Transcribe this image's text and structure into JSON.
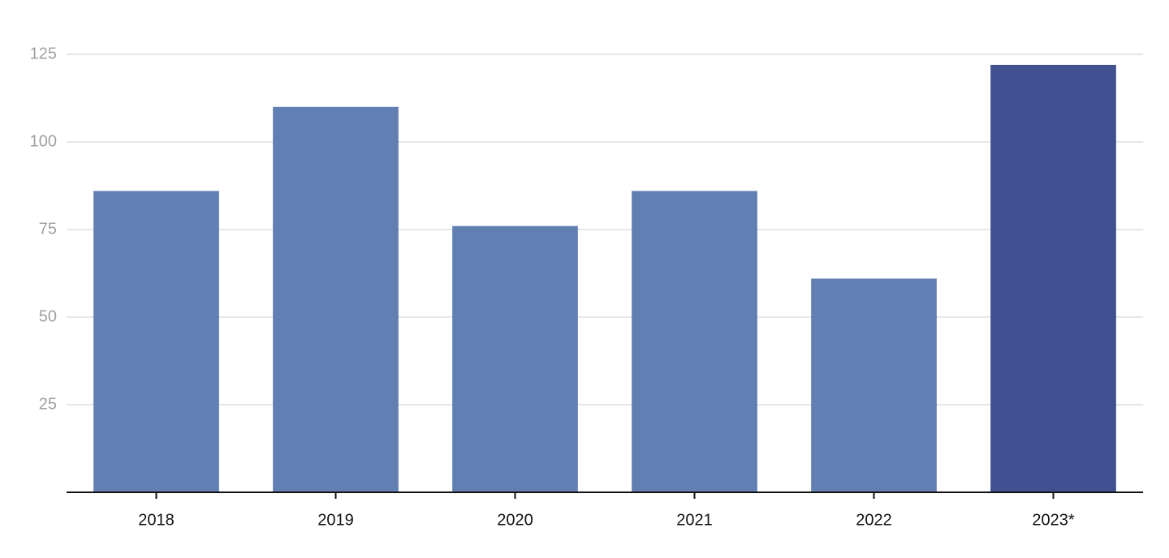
{
  "chart_data": {
    "type": "bar",
    "categories": [
      "2018",
      "2019",
      "2020",
      "2021",
      "2022",
      "2023*"
    ],
    "values": [
      86,
      110,
      76,
      86,
      61,
      122
    ],
    "colors": [
      "#627fb4",
      "#627fb4",
      "#627fb4",
      "#627fb4",
      "#627fb4",
      "#415091"
    ],
    "ylim": [
      0,
      125
    ],
    "yticks": [
      25,
      50,
      75,
      100,
      125
    ],
    "grid": true
  }
}
